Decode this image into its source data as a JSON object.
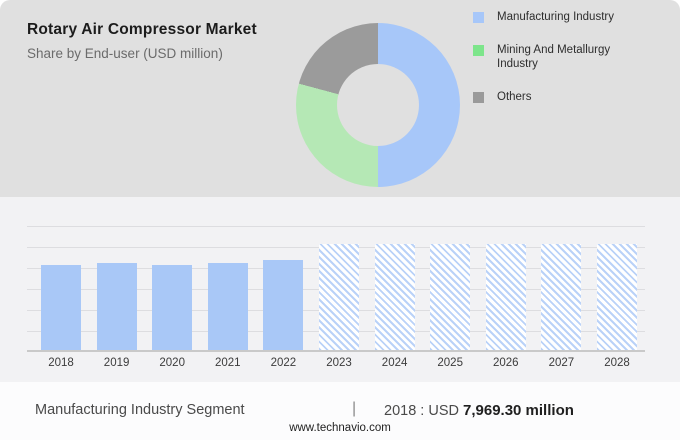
{
  "header": {
    "title": "Rotary Air Compressor Market",
    "subtitle": "Share by End-user (USD million)"
  },
  "legend": {
    "items": [
      {
        "label": "Manufacturing Industry",
        "color": "#a7c7f9"
      },
      {
        "label": "Mining And Metallurgy Industry",
        "color": "#7de58b"
      },
      {
        "label": "Others",
        "color": "#9a9a9a"
      }
    ]
  },
  "chart_data": [
    {
      "type": "pie",
      "subtype": "donut",
      "title": "Share by End-user (USD million)",
      "labels": [
        "Manufacturing Industry",
        "Mining And Metallurgy Industry",
        "Others"
      ],
      "values_pct": [
        50,
        29.2,
        20.8
      ],
      "colors": [
        "#a7c7f9",
        "#b5e8b5",
        "#9b9b9b"
      ],
      "start_angle_deg": 0,
      "direction": "clockwise",
      "inner_radius_ratio": 0.5,
      "legend_position": "right"
    },
    {
      "type": "bar",
      "categories": [
        "2018",
        "2019",
        "2020",
        "2021",
        "2022",
        "2023",
        "2024",
        "2025",
        "2026",
        "2027",
        "2028"
      ],
      "values": [
        7969.3,
        8160,
        7970,
        8160,
        8440,
        9940,
        9940,
        9940,
        9940,
        9940,
        9940
      ],
      "bar_styles": [
        "solid",
        "solid",
        "solid",
        "solid",
        "solid",
        "hatched",
        "hatched",
        "hatched",
        "hatched",
        "hatched",
        "hatched"
      ],
      "unit": "USD million",
      "labeled_value": {
        "category": "2018",
        "value": 7969.3,
        "text": "2018 : USD 7,969.30 million"
      },
      "note": "Only the 2018 value is labeled on the image; other values estimated from bar heights. Hatched bars are forecast years.",
      "xlabel": "",
      "ylabel": "",
      "ylim": [
        0,
        11800
      ],
      "grid": true,
      "bar_color_solid": "#a9c8f7",
      "bar_hatch_color": "#bad2f8"
    }
  ],
  "caption": {
    "segment": "Manufacturing Industry Segment",
    "separator": "|",
    "prefix": "2018 : USD ",
    "value_bold": "7,969.30 million"
  },
  "footer": {
    "website": "www.technavio.com"
  },
  "colors": {
    "top_panel_bg": "#e0e0e0",
    "chart_panel_bg": "#f2f2f4",
    "caption_band_bg": "#fcfcfd",
    "gridline": "#dddde0",
    "axis_line": "#c9c9c9"
  }
}
